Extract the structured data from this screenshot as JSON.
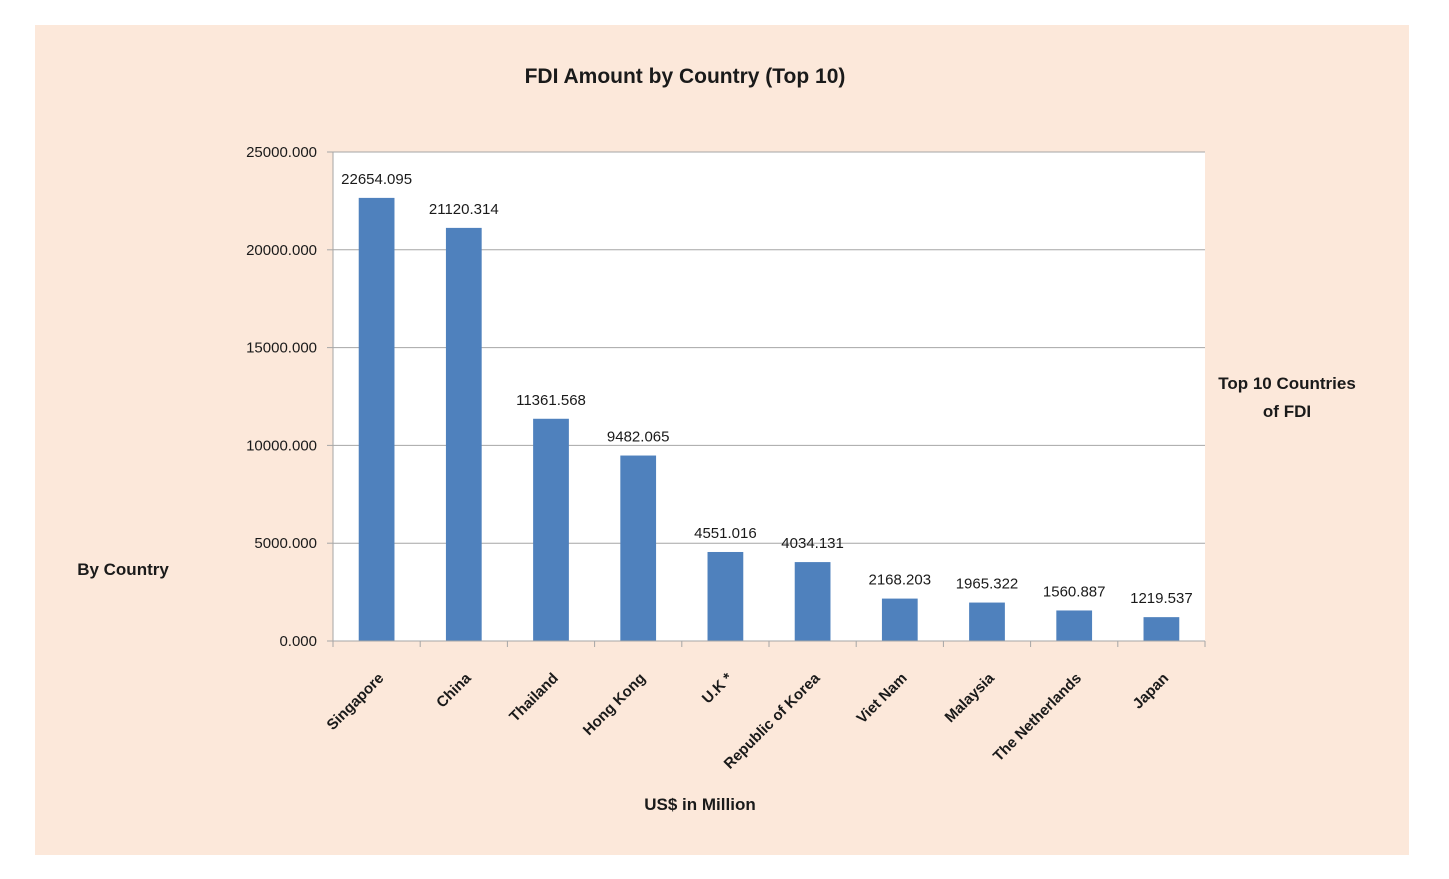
{
  "chart_data": {
    "type": "bar",
    "title": "FDI Amount by Country  (Top 10)",
    "xlabel": "US$ in Million",
    "ylabel": "By Country",
    "legend": [
      "Top 10 Countries",
      "of FDI"
    ],
    "categories": [
      "Singapore",
      "China",
      "Thailand",
      "Hong Kong",
      "U.K *",
      "Republic of Korea",
      "Viet Nam",
      "Malaysia",
      "The Netherlands",
      "Japan"
    ],
    "values": [
      22654.095,
      21120.314,
      11361.568,
      9482.065,
      4551.016,
      4034.131,
      2168.203,
      1965.322,
      1560.887,
      1219.537
    ],
    "data_labels": [
      "22654.095",
      "21120.314",
      "11361.568",
      "9482.065",
      "4551.016",
      "4034.131",
      "2168.203",
      "1965.322",
      "1560.887",
      "1219.537"
    ],
    "yticks": [
      0,
      5000,
      10000,
      15000,
      20000,
      25000
    ],
    "ytick_labels": [
      "0.000",
      "5000.000",
      "10000.000",
      "15000.000",
      "20000.000",
      "25000.000"
    ],
    "ylim": [
      0,
      25000
    ],
    "grid": true,
    "legend_position": "right",
    "colors": {
      "bar": "#4f81bd",
      "background": "#fce8da",
      "plot_area": "#ffffff",
      "grid": "#a6a6a6"
    }
  }
}
